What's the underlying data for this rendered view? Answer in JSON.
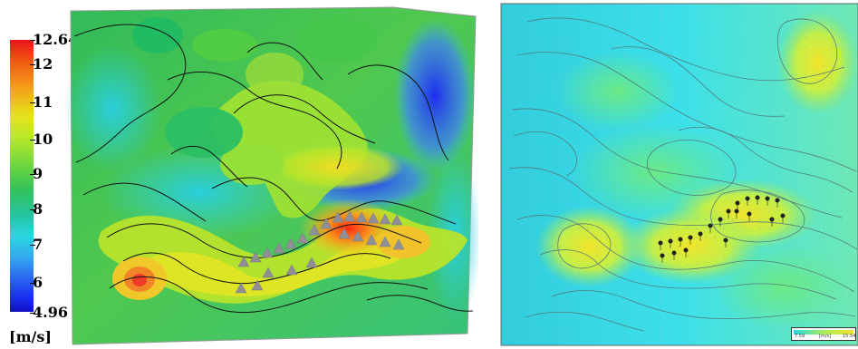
{
  "left_legend": {
    "max": "12.64",
    "ticks": [
      "12",
      "11",
      "10",
      "9",
      "8",
      "7",
      "6"
    ],
    "min": "4.96",
    "unit": "[m/s]"
  },
  "right_legend": {
    "min": "7.59",
    "unit": "[m/s]",
    "max": "15.54"
  },
  "colors": {
    "red": "#e8141a",
    "orange": "#f4a11a",
    "yellow": "#e6e21e",
    "green": "#35c25a",
    "cyan": "#24c4a6",
    "blue": "#1a2cf0"
  },
  "left_map": {
    "turbine_markers": 24,
    "marker_shape": "triangle-marker"
  },
  "right_map": {
    "turbine_markers": 21,
    "marker_shape": "turbine-icon"
  }
}
